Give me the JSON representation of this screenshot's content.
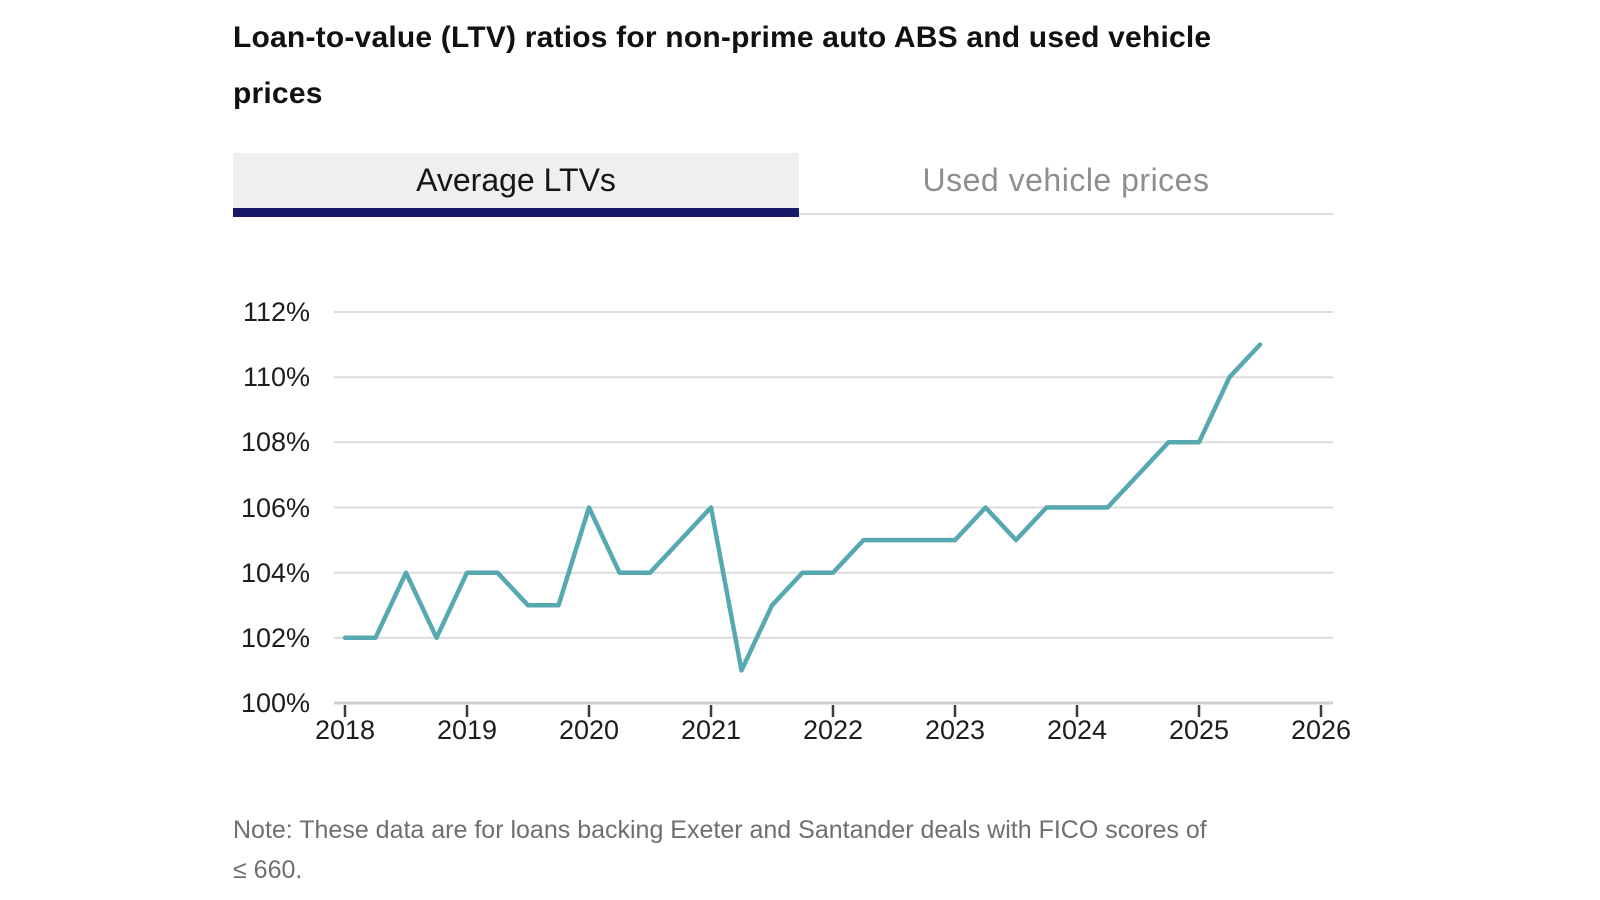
{
  "title": {
    "line1": "Loan-to-value (LTV) ratios for non-prime auto ABS and used vehicle",
    "line2": "prices"
  },
  "tabs": [
    {
      "label": "Average LTVs",
      "active": true
    },
    {
      "label": "Used vehicle prices",
      "active": false
    }
  ],
  "note": {
    "line1": "Note: These data are for loans backing Exeter and Santander deals with FICO scores of",
    "line2": "≤ 660."
  },
  "colors": {
    "line": "#57a9b1",
    "tab_underline": "#181a67",
    "tab_active_bg": "#efefef",
    "tab_inactive_text": "#8e8e8e",
    "grid": "#dcdcdc",
    "axis": "#cfcfcf",
    "tick": "#3b3b3b",
    "note_text": "#6f6f6f"
  },
  "chart_data": {
    "type": "line",
    "title": "Loan-to-value (LTV) ratios for non-prime auto ABS and used vehicle prices",
    "active_view": "Average LTVs",
    "x_frequency": "quarterly",
    "series": [
      {
        "name": "Average LTVs",
        "x": [
          2018,
          2018.25,
          2018.5,
          2018.75,
          2019,
          2019.25,
          2019.5,
          2019.75,
          2020,
          2020.25,
          2020.5,
          2020.75,
          2021,
          2021.25,
          2021.5,
          2021.75,
          2022,
          2022.25,
          2022.5,
          2022.75,
          2023,
          2023.25,
          2023.5,
          2023.75,
          2024,
          2024.25,
          2024.5,
          2024.75,
          2025,
          2025.25,
          2025.5
        ],
        "values": [
          102,
          102,
          104,
          102,
          104,
          104,
          103,
          103,
          106,
          104,
          104,
          105,
          106,
          101,
          103,
          104,
          104,
          105,
          105,
          105,
          105,
          106,
          105,
          106,
          106,
          106,
          107,
          108,
          108,
          110,
          111
        ]
      }
    ],
    "yticks": [
      "112%",
      "110%",
      "108%",
      "106%",
      "104%",
      "102%",
      "100%"
    ],
    "xticks": [
      "2018",
      "2019",
      "2020",
      "2021",
      "2022",
      "2023",
      "2024",
      "2025",
      "2026"
    ],
    "ylim": [
      100,
      112
    ],
    "xlim": [
      2018,
      2026
    ],
    "y_unit": "percent",
    "grid": "horizontal",
    "legend": "none"
  }
}
